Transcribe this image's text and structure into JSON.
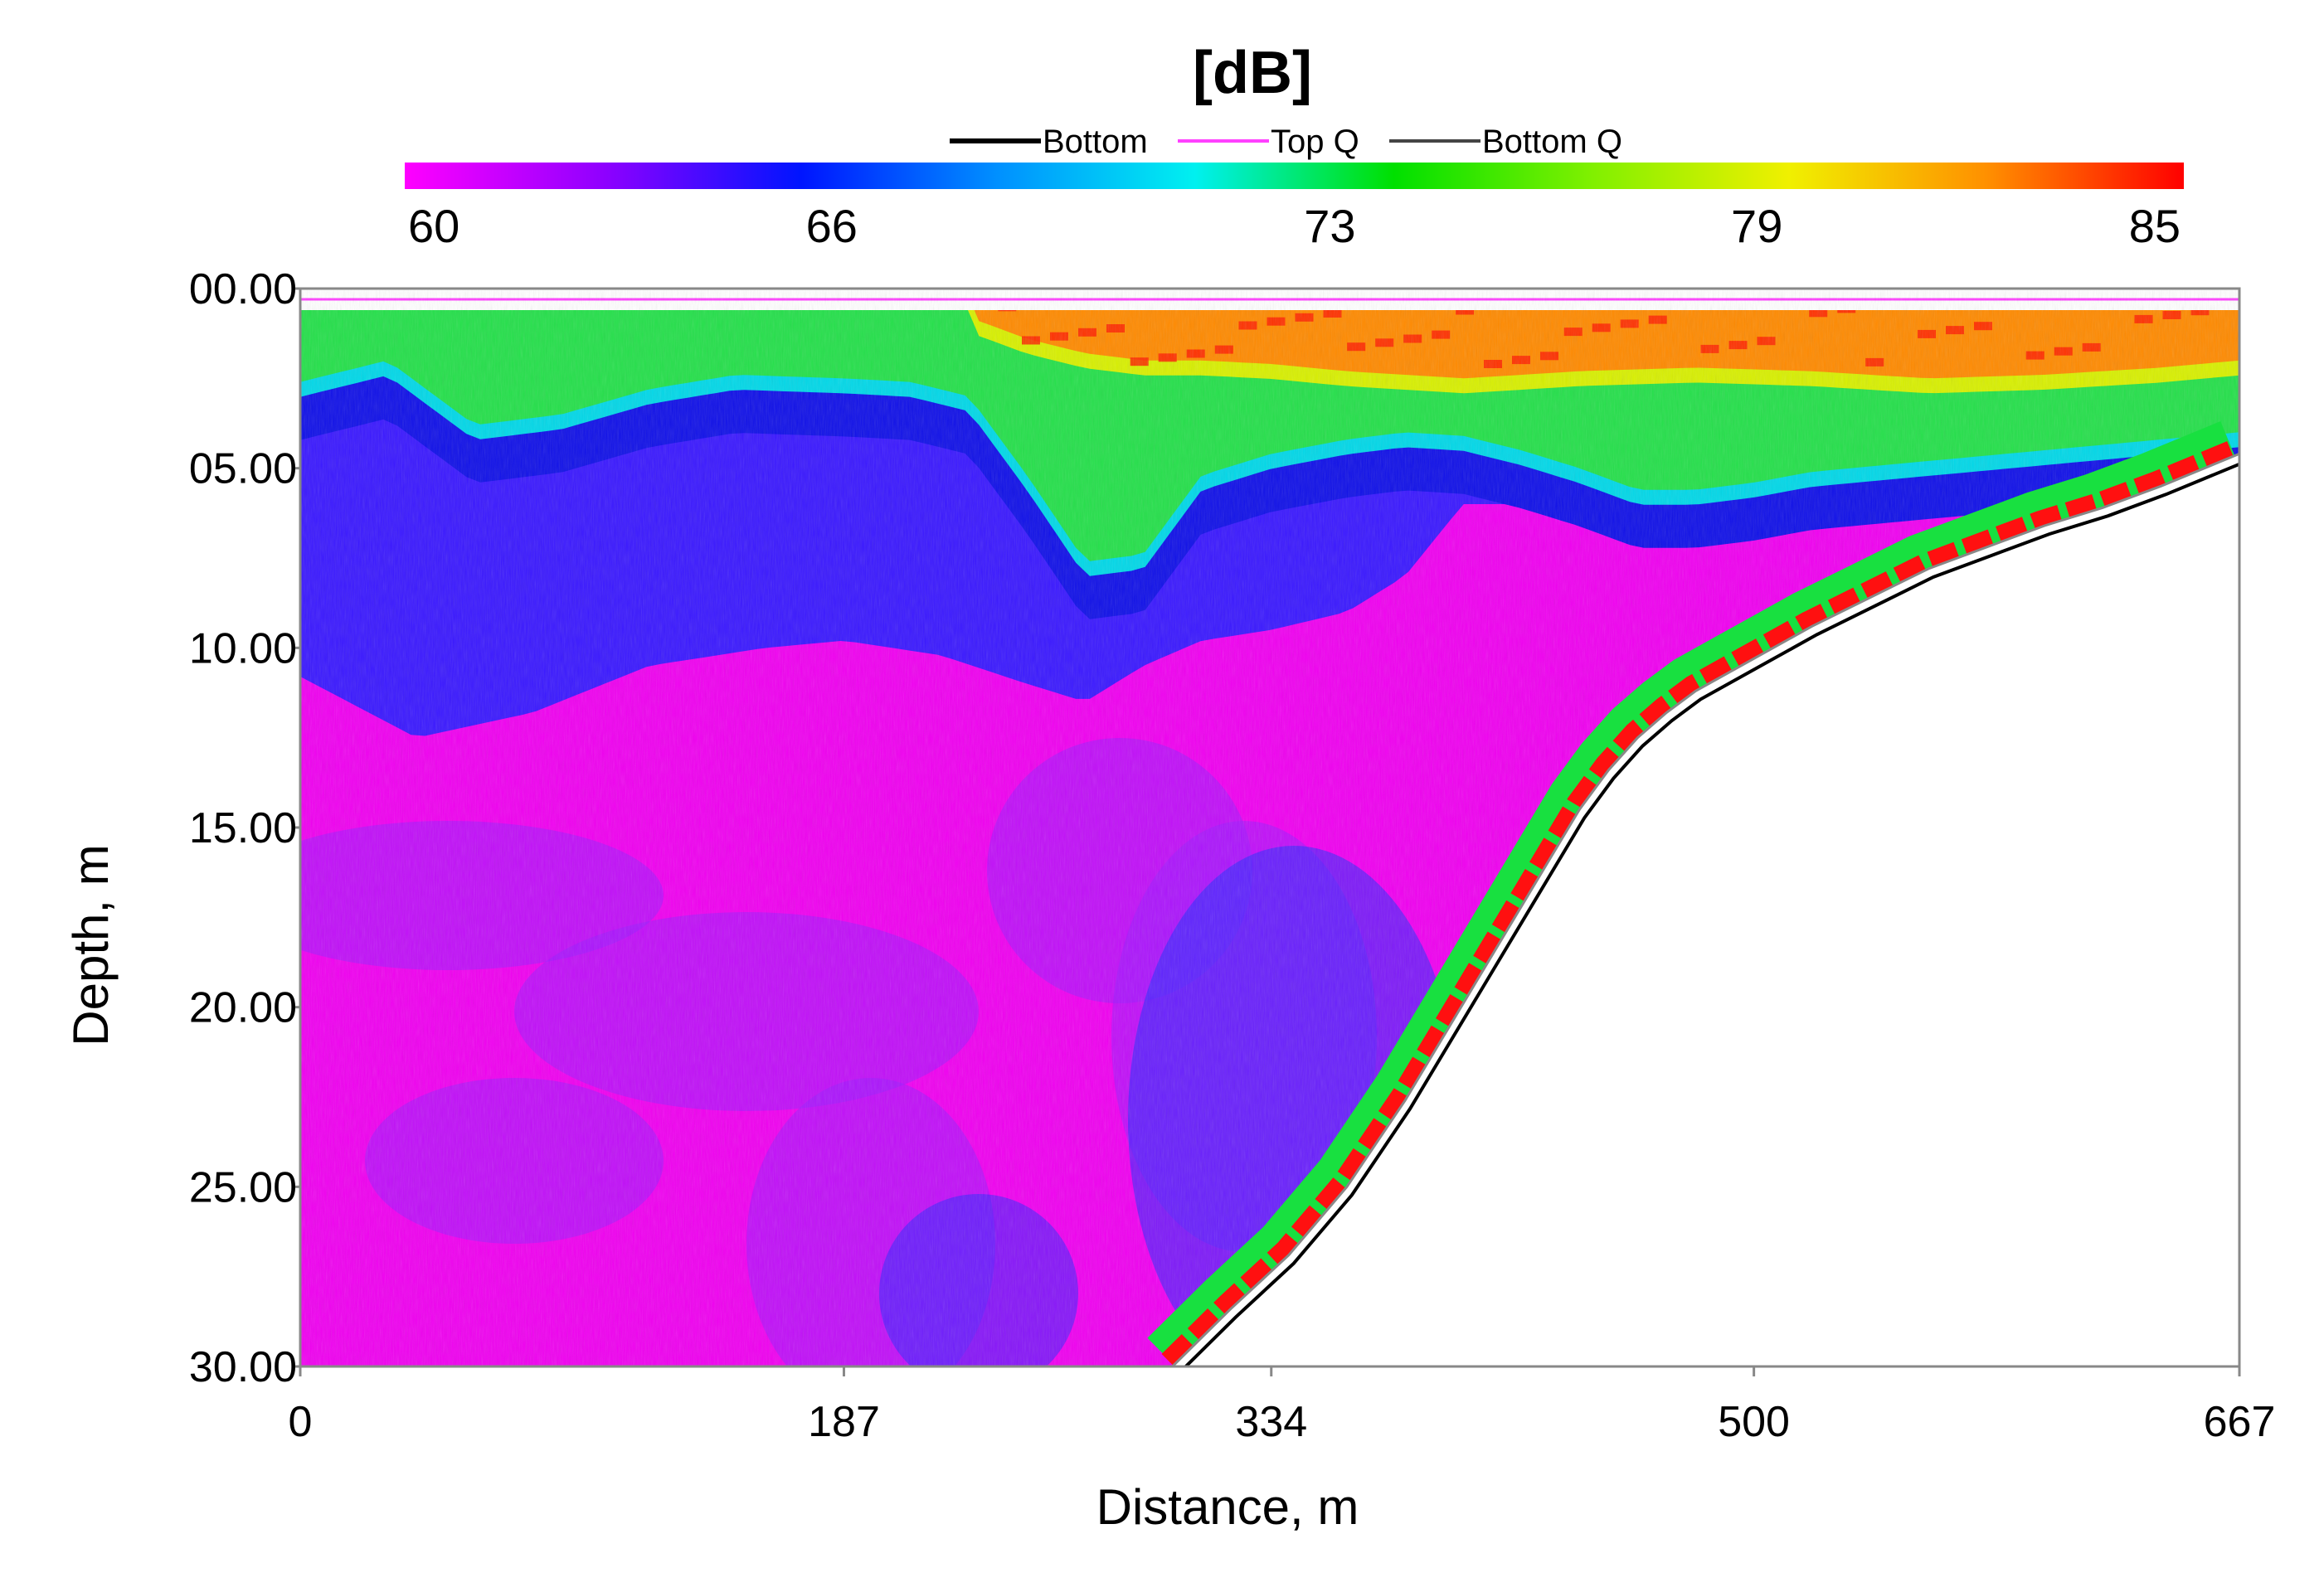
{
  "chart_data": {
    "type": "heatmap",
    "colorbar": {
      "title": "[dB]",
      "min": 60,
      "max": 85,
      "ticks": [
        60,
        66,
        73,
        79,
        85
      ],
      "tick_labels": [
        "60",
        "66",
        "73",
        "79",
        "85"
      ],
      "colors": [
        "#ff00ff",
        "#9000ff",
        "#0014ff",
        "#0090ff",
        "#00f0f0",
        "#00e000",
        "#80f000",
        "#f0f000",
        "#ff9000",
        "#ff0000"
      ]
    },
    "legend": {
      "placement": "top-center",
      "entries": [
        {
          "name": "Bottom",
          "color": "#000000"
        },
        {
          "name": "Top Q",
          "color": "#ff40ff"
        },
        {
          "name": "Bottom Q",
          "color": "#444444"
        }
      ]
    },
    "xlabel": "Distance, m",
    "ylabel": "Depth, m",
    "xlim": [
      0,
      667
    ],
    "ylim": [
      0,
      30
    ],
    "x_ticks": [
      0,
      187,
      334,
      500,
      667
    ],
    "x_tick_labels": [
      "0",
      "187",
      "334",
      "500",
      "667"
    ],
    "y_ticks": [
      0,
      5,
      10,
      15,
      20,
      25,
      30
    ],
    "y_tick_labels": [
      "00.00",
      "05.00",
      "10.00",
      "15.00",
      "20.00",
      "25.00",
      "30.00"
    ],
    "bottom_profile": {
      "distance_m": [
        300,
        320,
        340,
        360,
        380,
        400,
        420,
        440,
        450,
        460,
        470,
        480,
        500,
        520,
        540,
        560,
        580,
        600,
        620,
        640,
        667
      ],
      "depth_m": [
        30.0,
        28.4,
        26.9,
        25.0,
        22.6,
        19.9,
        17.2,
        14.5,
        13.4,
        12.5,
        11.8,
        11.2,
        10.3,
        9.4,
        8.6,
        7.8,
        7.2,
        6.6,
        6.1,
        5.5,
        4.6
      ]
    },
    "top_q_depth_m": 0.3,
    "surface_layer": {
      "distance_m": [
        0,
        30,
        60,
        90,
        120,
        150,
        187,
        210,
        230,
        250,
        270,
        290,
        310,
        334,
        360,
        380,
        400,
        420,
        440,
        460,
        480,
        500,
        520,
        560,
        600,
        640,
        667
      ],
      "depth_m": [
        2.6,
        2.0,
        3.8,
        3.5,
        2.8,
        2.4,
        2.5,
        2.6,
        3.0,
        5.2,
        7.6,
        7.4,
        5.2,
        4.6,
        4.2,
        4.0,
        4.1,
        4.5,
        5.0,
        5.6,
        5.6,
        5.4,
        5.1,
        4.8,
        4.5,
        4.2,
        4.0
      ]
    },
    "warm_layer": {
      "distance_m": [
        230,
        250,
        270,
        290,
        310,
        334,
        360,
        400,
        440,
        480,
        520,
        560,
        600,
        640,
        667
      ],
      "depth_m": [
        0.8,
        1.4,
        1.8,
        2.0,
        2.0,
        2.1,
        2.3,
        2.5,
        2.3,
        2.2,
        2.3,
        2.5,
        2.4,
        2.2,
        2.0
      ]
    },
    "blue_layer": {
      "distance_m": [
        0,
        40,
        80,
        120,
        160,
        187,
        220,
        250,
        270,
        290,
        310,
        334,
        360,
        380,
        400
      ],
      "depth_m": [
        10.8,
        12.5,
        11.8,
        10.5,
        10.0,
        9.8,
        10.2,
        11.0,
        11.5,
        10.5,
        9.8,
        9.5,
        9.0,
        8.0,
        6.0
      ]
    }
  }
}
